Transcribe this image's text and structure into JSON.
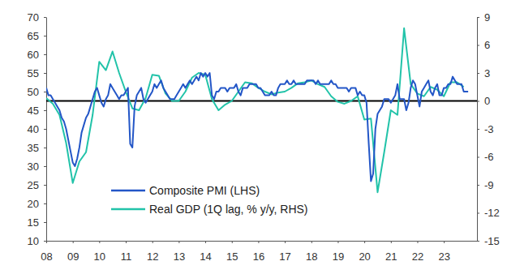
{
  "chart_data": {
    "type": "line",
    "xlim": [
      2008,
      2024.25
    ],
    "xticks": [
      {
        "value": 2008,
        "label": "08"
      },
      {
        "value": 2009,
        "label": "09"
      },
      {
        "value": 2010,
        "label": "10"
      },
      {
        "value": 2011,
        "label": "11"
      },
      {
        "value": 2012,
        "label": "12"
      },
      {
        "value": 2013,
        "label": "13"
      },
      {
        "value": 2014,
        "label": "14"
      },
      {
        "value": 2015,
        "label": "15"
      },
      {
        "value": 2016,
        "label": "16"
      },
      {
        "value": 2017,
        "label": "17"
      },
      {
        "value": 2018,
        "label": "18"
      },
      {
        "value": 2019,
        "label": "19"
      },
      {
        "value": 2020,
        "label": "20"
      },
      {
        "value": 2021,
        "label": "21"
      },
      {
        "value": 2022,
        "label": "22"
      },
      {
        "value": 2023,
        "label": "23"
      }
    ],
    "ylim": [
      10,
      70
    ],
    "yticks": [
      10,
      15,
      20,
      25,
      30,
      35,
      40,
      45,
      50,
      55,
      60,
      65,
      70
    ],
    "y2lim": [
      -15,
      9
    ],
    "y2ticks": [
      -15,
      -12,
      -9,
      -6,
      -3,
      0,
      3,
      6,
      9
    ],
    "grid": false,
    "legend": "lower left",
    "series": [
      {
        "name": "Composite PMI (LHS)",
        "color": "#2356c7",
        "x": [
          2008,
          2008.083,
          2008.167,
          2008.25,
          2008.333,
          2008.417,
          2008.5,
          2008.583,
          2008.667,
          2008.75,
          2008.833,
          2008.917,
          2009,
          2009.083,
          2009.167,
          2009.25,
          2009.333,
          2009.417,
          2009.5,
          2009.583,
          2009.667,
          2009.75,
          2009.833,
          2009.917,
          2010,
          2010.083,
          2010.167,
          2010.25,
          2010.333,
          2010.417,
          2010.5,
          2010.583,
          2010.667,
          2010.75,
          2010.833,
          2010.917,
          2011,
          2011.083,
          2011.167,
          2011.25,
          2011.333,
          2011.417,
          2011.5,
          2011.583,
          2011.667,
          2011.75,
          2011.833,
          2011.917,
          2012,
          2012.083,
          2012.167,
          2012.25,
          2012.333,
          2012.417,
          2012.5,
          2012.583,
          2012.667,
          2012.75,
          2012.833,
          2012.917,
          2013,
          2013.083,
          2013.167,
          2013.25,
          2013.333,
          2013.417,
          2013.5,
          2013.583,
          2013.667,
          2013.75,
          2013.833,
          2013.917,
          2014,
          2014.083,
          2014.167,
          2014.25,
          2014.333,
          2014.417,
          2014.5,
          2014.583,
          2014.667,
          2014.75,
          2014.833,
          2014.917,
          2015,
          2015.083,
          2015.167,
          2015.25,
          2015.333,
          2015.417,
          2015.5,
          2015.583,
          2015.667,
          2015.75,
          2015.833,
          2015.917,
          2016,
          2016.083,
          2016.167,
          2016.25,
          2016.333,
          2016.417,
          2016.5,
          2016.583,
          2016.667,
          2016.75,
          2016.833,
          2016.917,
          2017,
          2017.083,
          2017.167,
          2017.25,
          2017.333,
          2017.417,
          2017.5,
          2017.583,
          2017.667,
          2017.75,
          2017.833,
          2017.917,
          2018,
          2018.083,
          2018.167,
          2018.25,
          2018.333,
          2018.417,
          2018.5,
          2018.583,
          2018.667,
          2018.75,
          2018.833,
          2018.917,
          2019,
          2019.083,
          2019.167,
          2019.25,
          2019.333,
          2019.417,
          2019.5,
          2019.583,
          2019.667,
          2019.75,
          2019.833,
          2019.917,
          2020,
          2020.083,
          2020.167,
          2020.25,
          2020.333,
          2020.417,
          2020.5,
          2020.583,
          2020.667,
          2020.75,
          2020.833,
          2020.917,
          2021,
          2021.083,
          2021.167,
          2021.25,
          2021.333,
          2021.417,
          2021.5,
          2021.583,
          2021.667,
          2021.75,
          2021.833,
          2021.917,
          2022,
          2022.083,
          2022.167,
          2022.25,
          2022.333,
          2022.417,
          2022.5,
          2022.583,
          2022.667,
          2022.75,
          2022.833,
          2022.917,
          2023,
          2023.083,
          2023.167,
          2023.25,
          2023.333,
          2023.417,
          2023.5,
          2023.583,
          2023.667,
          2023.75,
          2023.833,
          2023.917
        ],
        "values": [
          51,
          49,
          49,
          48,
          47,
          46,
          45,
          43,
          42,
          40,
          37,
          34,
          31,
          30,
          32,
          35,
          39,
          41,
          43,
          44,
          46,
          48,
          50,
          51,
          49,
          47,
          46,
          48,
          49,
          52,
          51,
          50,
          49,
          48,
          49,
          49,
          50,
          51,
          36,
          35,
          46,
          49,
          50,
          51,
          48,
          47,
          48,
          49,
          50,
          52,
          51,
          52,
          53,
          51,
          50,
          49,
          48,
          48,
          48,
          49,
          50,
          51,
          52,
          51,
          52,
          53,
          52,
          53,
          54,
          53,
          55,
          54,
          55,
          54,
          55,
          49,
          48,
          50,
          50,
          51,
          51,
          51,
          50,
          51,
          51,
          51,
          52,
          50,
          49,
          51,
          51,
          51,
          52,
          52,
          52,
          52,
          51,
          51,
          50,
          49,
          49,
          49,
          50,
          49,
          49,
          51,
          52,
          52,
          52,
          53,
          52,
          52,
          53,
          52,
          52,
          52,
          52,
          52,
          53,
          53,
          53,
          53,
          52,
          53,
          52,
          52,
          52,
          52,
          52,
          53,
          52,
          52,
          51,
          51,
          51,
          51,
          51,
          50,
          51,
          51,
          51,
          49,
          50,
          49,
          49,
          47,
          36,
          26,
          28,
          40,
          44,
          45,
          46,
          48,
          48,
          48,
          47,
          48,
          49,
          52,
          48,
          48,
          48,
          45,
          47,
          51,
          53,
          52,
          49,
          46,
          50,
          51,
          52,
          53,
          50,
          49,
          51,
          52,
          49,
          49,
          51,
          51,
          52,
          52,
          54,
          53,
          52,
          52,
          52,
          50,
          50,
          50
        ]
      },
      {
        "name": "Real GDP (1Q lag, % y/y, RHS)",
        "color": "#22c3a9",
        "axis": "y2",
        "x": [
          2008,
          2008.25,
          2008.5,
          2008.75,
          2009,
          2009.25,
          2009.5,
          2009.75,
          2010,
          2010.25,
          2010.5,
          2010.75,
          2011,
          2011.25,
          2011.5,
          2011.75,
          2012,
          2012.25,
          2012.5,
          2012.75,
          2013,
          2013.25,
          2013.5,
          2013.75,
          2014,
          2014.25,
          2014.5,
          2014.75,
          2015,
          2015.25,
          2015.5,
          2015.75,
          2016,
          2016.25,
          2016.5,
          2016.75,
          2017,
          2017.25,
          2017.5,
          2017.75,
          2018,
          2018.25,
          2018.5,
          2018.75,
          2019,
          2019.25,
          2019.5,
          2019.75,
          2020,
          2020.25,
          2020.5,
          2020.75,
          2021,
          2021.25,
          2021.5,
          2021.75,
          2022,
          2022.25,
          2022.5,
          2022.75,
          2023,
          2023.25,
          2023.5,
          2023.75
        ],
        "values": [
          0.3,
          -0.3,
          -1.5,
          -4.5,
          -8.8,
          -6.5,
          -5.5,
          -1.5,
          4.2,
          3.3,
          5.3,
          3.0,
          1.0,
          -0.8,
          -1.0,
          0.3,
          2.8,
          2.7,
          0.8,
          0.0,
          0.0,
          1.0,
          2.5,
          3.0,
          2.8,
          0.2,
          -1.0,
          -0.4,
          0.0,
          1.0,
          2.0,
          1.9,
          1.4,
          1.0,
          0.7,
          0.9,
          1.0,
          1.4,
          1.9,
          2.0,
          2.2,
          1.8,
          1.5,
          0.5,
          -0.1,
          -0.3,
          0.0,
          0.5,
          -2.0,
          -1.9,
          -9.8,
          -5.5,
          -1.0,
          -1.5,
          7.8,
          1.8,
          0.8,
          0.5,
          1.5,
          1.2,
          0.5,
          2.0,
          2.0,
          1.5
        ]
      }
    ]
  }
}
